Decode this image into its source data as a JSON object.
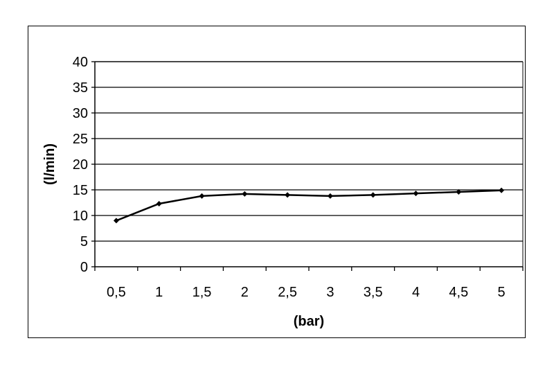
{
  "chart_data": {
    "type": "line",
    "title": "",
    "xlabel": "(bar)",
    "ylabel": "(l/min)",
    "categories": [
      "0,5",
      "1",
      "1,5",
      "2",
      "2,5",
      "3",
      "3,5",
      "4",
      "4,5",
      "5"
    ],
    "values": [
      9.0,
      12.3,
      13.8,
      14.2,
      14.0,
      13.8,
      14.0,
      14.3,
      14.6,
      14.9
    ],
    "ylim": [
      0,
      40
    ],
    "yticks": [
      "0",
      "5",
      "10",
      "15",
      "20",
      "25",
      "30",
      "35",
      "40"
    ],
    "grid": "horizontal",
    "legend": "none",
    "line_color": "#000000"
  }
}
